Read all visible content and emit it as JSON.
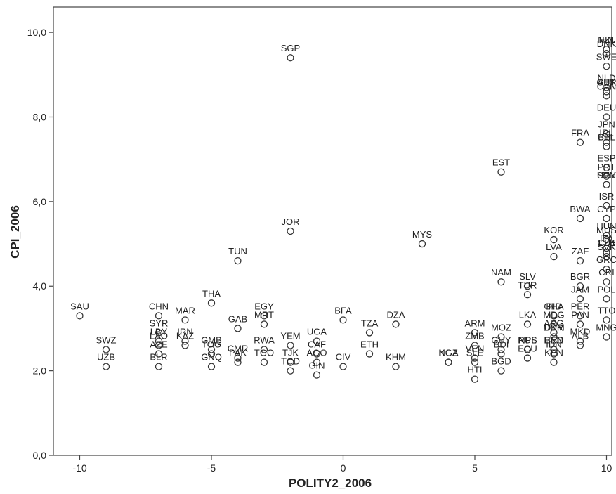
{
  "chart_data": {
    "type": "scatter",
    "xlabel": "POLITY2_2006",
    "ylabel": "CPI_2006",
    "xlim": [
      -11.0,
      10.2
    ],
    "ylim": [
      0,
      10.6
    ],
    "xticks": [
      -10,
      -5,
      0,
      5,
      10
    ],
    "xtick_labels": [
      "-10",
      "-5",
      "0",
      "5",
      "10"
    ],
    "yticks": [
      0,
      2,
      4,
      6,
      8,
      10
    ],
    "ytick_labels": [
      "0,0",
      "2,0",
      "4,0",
      "6,0",
      "8,0",
      "10,0"
    ],
    "grid": false,
    "marker": "hollow-circle",
    "marker_color": "#333333",
    "points": [
      {
        "label": "SGP",
        "x": -2,
        "y": 9.4
      },
      {
        "label": "JOR",
        "x": -2,
        "y": 5.3
      },
      {
        "label": "TUN",
        "x": -4,
        "y": 4.6
      },
      {
        "label": "THA",
        "x": -5,
        "y": 3.6
      },
      {
        "label": "SAU",
        "x": -10,
        "y": 3.3
      },
      {
        "label": "CHN",
        "x": -7,
        "y": 3.3
      },
      {
        "label": "SYR",
        "x": -7,
        "y": 2.9
      },
      {
        "label": "SWZ",
        "x": -9,
        "y": 2.5
      },
      {
        "label": "UZB",
        "x": -9,
        "y": 2.1
      },
      {
        "label": "LAO",
        "x": -7,
        "y": 2.6
      },
      {
        "label": "LBY",
        "x": -7,
        "y": 2.7
      },
      {
        "label": "AZE",
        "x": -7,
        "y": 2.4
      },
      {
        "label": "BLR",
        "x": -7,
        "y": 2.1
      },
      {
        "label": "MAR",
        "x": -6,
        "y": 3.2
      },
      {
        "label": "KAZ",
        "x": -6,
        "y": 2.6
      },
      {
        "label": "IRN",
        "x": -6,
        "y": 2.7
      },
      {
        "label": "GNQ",
        "x": -5,
        "y": 2.1
      },
      {
        "label": "GAB",
        "x": -4,
        "y": 3.0
      },
      {
        "label": "GMB",
        "x": -5,
        "y": 2.5
      },
      {
        "label": "TOG",
        "x": -5,
        "y": 2.4
      },
      {
        "label": "PAK",
        "x": -4,
        "y": 2.2
      },
      {
        "label": "CMR",
        "x": -4,
        "y": 2.3
      },
      {
        "label": "MRT",
        "x": -3,
        "y": 3.1
      },
      {
        "label": "EGY",
        "x": -3,
        "y": 3.3
      },
      {
        "label": "RWA",
        "x": -3,
        "y": 2.5
      },
      {
        "label": "TJK",
        "x": -2,
        "y": 2.2
      },
      {
        "label": "TGO",
        "x": -3,
        "y": 2.2
      },
      {
        "label": "TCD",
        "x": -2,
        "y": 2.0
      },
      {
        "label": "YEM",
        "x": -2,
        "y": 2.6
      },
      {
        "label": "AGO",
        "x": -1,
        "y": 2.2
      },
      {
        "label": "UGA",
        "x": -1,
        "y": 2.7
      },
      {
        "label": "CAF",
        "x": -1,
        "y": 2.4
      },
      {
        "label": "GIN",
        "x": -1,
        "y": 1.9
      },
      {
        "label": "CIV",
        "x": 0,
        "y": 2.1
      },
      {
        "label": "BFA",
        "x": 0,
        "y": 3.2
      },
      {
        "label": "ETH",
        "x": 1,
        "y": 2.4
      },
      {
        "label": "TZA",
        "x": 1,
        "y": 2.9
      },
      {
        "label": "DZA",
        "x": 2,
        "y": 3.1
      },
      {
        "label": "KHM",
        "x": 2,
        "y": 2.1
      },
      {
        "label": "MYS",
        "x": 3,
        "y": 5.0
      },
      {
        "label": "NGA",
        "x": 4,
        "y": 2.2
      },
      {
        "label": "KGZ",
        "x": 4,
        "y": 2.2
      },
      {
        "label": "SLE",
        "x": 5,
        "y": 2.2
      },
      {
        "label": "ARM",
        "x": 5,
        "y": 2.9
      },
      {
        "label": "ZMB",
        "x": 5,
        "y": 2.6
      },
      {
        "label": "VEN",
        "x": 5,
        "y": 2.3
      },
      {
        "label": "HTI",
        "x": 5,
        "y": 1.8
      },
      {
        "label": "MOZ",
        "x": 6,
        "y": 2.8
      },
      {
        "label": "GUY",
        "x": 6,
        "y": 2.5
      },
      {
        "label": "BDI",
        "x": 6,
        "y": 2.4
      },
      {
        "label": "BGD",
        "x": 6,
        "y": 2.0
      },
      {
        "label": "EST",
        "x": 6,
        "y": 6.7
      },
      {
        "label": "NAM",
        "x": 6,
        "y": 4.1
      },
      {
        "label": "TUR",
        "x": 7,
        "y": 3.8
      },
      {
        "label": "SLV",
        "x": 7,
        "y": 4.0
      },
      {
        "label": "LKA",
        "x": 7,
        "y": 3.1
      },
      {
        "label": "NPL",
        "x": 7,
        "y": 2.5
      },
      {
        "label": "RUS",
        "x": 7,
        "y": 2.5
      },
      {
        "label": "ECU",
        "x": 7,
        "y": 2.3
      },
      {
        "label": "MDG",
        "x": 8,
        "y": 3.1
      },
      {
        "label": "UKR",
        "x": 8,
        "y": 2.8
      },
      {
        "label": "HND",
        "x": 8,
        "y": 2.5
      },
      {
        "label": "BEN",
        "x": 8,
        "y": 2.5
      },
      {
        "label": "KEN",
        "x": 8,
        "y": 2.2
      },
      {
        "label": "IDN",
        "x": 8,
        "y": 2.4
      },
      {
        "label": "DOM",
        "x": 8,
        "y": 2.8
      },
      {
        "label": "ARG",
        "x": 8,
        "y": 2.9
      },
      {
        "label": "IND",
        "x": 8,
        "y": 3.3
      },
      {
        "label": "GHA",
        "x": 8,
        "y": 3.3
      },
      {
        "label": "JAM",
        "x": 9,
        "y": 3.7
      },
      {
        "label": "BGR",
        "x": 9,
        "y": 4.0
      },
      {
        "label": "PAN",
        "x": 9,
        "y": 3.1
      },
      {
        "label": "PER",
        "x": 9,
        "y": 3.3
      },
      {
        "label": "MNG",
        "x": 10,
        "y": 2.8
      },
      {
        "label": "ALB",
        "x": 9,
        "y": 2.6
      },
      {
        "label": "MKD",
        "x": 9,
        "y": 2.7
      },
      {
        "label": "TTO",
        "x": 10,
        "y": 3.2
      },
      {
        "label": "GRC",
        "x": 10,
        "y": 4.4
      },
      {
        "label": "POL",
        "x": 10,
        "y": 3.7
      },
      {
        "label": "CRI",
        "x": 10,
        "y": 4.1
      },
      {
        "label": "CZE",
        "x": 10,
        "y": 4.8
      },
      {
        "label": "LVA",
        "x": 8,
        "y": 4.7
      },
      {
        "label": "ZAF",
        "x": 9,
        "y": 4.6
      },
      {
        "label": "ITA",
        "x": 10,
        "y": 4.9
      },
      {
        "label": "SVK",
        "x": 10,
        "y": 4.7
      },
      {
        "label": "LTU",
        "x": 10,
        "y": 4.8
      },
      {
        "label": "HUN",
        "x": 10,
        "y": 5.2
      },
      {
        "label": "KOR",
        "x": 8,
        "y": 5.1
      },
      {
        "label": "CYP",
        "x": 10,
        "y": 5.6
      },
      {
        "label": "MUS",
        "x": 10,
        "y": 5.1
      },
      {
        "label": "BWA",
        "x": 9,
        "y": 5.6
      },
      {
        "label": "ISR",
        "x": 10,
        "y": 5.9
      },
      {
        "label": "PRT",
        "x": 10,
        "y": 6.6
      },
      {
        "label": "URY",
        "x": 10,
        "y": 6.4
      },
      {
        "label": "SVN",
        "x": 10,
        "y": 6.4
      },
      {
        "label": "ESP",
        "x": 10,
        "y": 6.8
      },
      {
        "label": "BEL",
        "x": 10,
        "y": 7.3
      },
      {
        "label": "IRL",
        "x": 10,
        "y": 7.4
      },
      {
        "label": "FRA",
        "x": 9,
        "y": 7.4
      },
      {
        "label": "CHL",
        "x": 10,
        "y": 7.3
      },
      {
        "label": "JPN",
        "x": 10,
        "y": 7.6
      },
      {
        "label": "DEU",
        "x": 10,
        "y": 8.0
      },
      {
        "label": "AUT",
        "x": 10,
        "y": 8.6
      },
      {
        "label": "NLD",
        "x": 10,
        "y": 8.7
      },
      {
        "label": "CAN",
        "x": 10,
        "y": 8.5
      },
      {
        "label": "GBR",
        "x": 10,
        "y": 8.6
      },
      {
        "label": "SWE",
        "x": 10,
        "y": 9.2
      },
      {
        "label": "FIN",
        "x": 10,
        "y": 9.6
      },
      {
        "label": "DNK",
        "x": 10,
        "y": 9.5
      },
      {
        "label": "NZL",
        "x": 10,
        "y": 9.6
      }
    ]
  }
}
